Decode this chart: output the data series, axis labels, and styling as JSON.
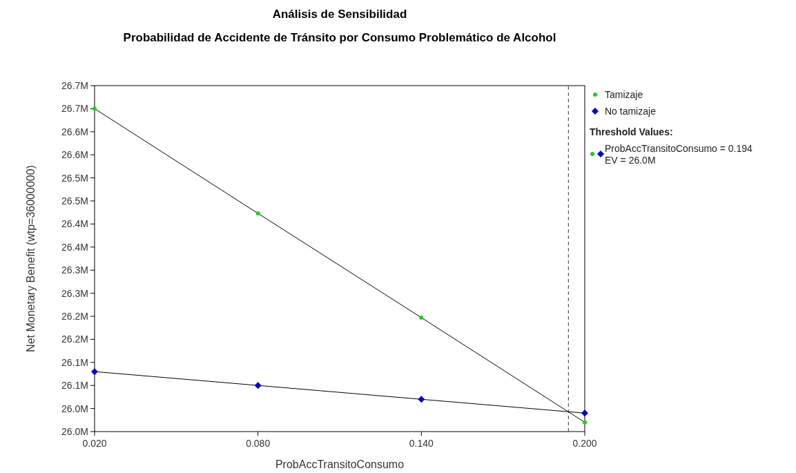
{
  "chart_data": {
    "type": "line",
    "title": "Análisis de Sensibilidad",
    "subtitle": "Probabilidad de Accidente de Tránsito por Consumo Problemático de Alcohol",
    "xlabel": "ProbAccTransitoConsumo",
    "ylabel": "Net Monetary Benefit (wtp=36000000)",
    "legend_title": "Threshold Values:",
    "annotations": [
      "ProbAccTransitoConsumo = 0.194",
      "EV = 26.0M"
    ],
    "x": [
      0.02,
      0.08,
      0.14,
      0.2
    ],
    "series": [
      {
        "name": "Tamizaje",
        "color": "#22cc22",
        "marker": "circle",
        "values": [
          26650000,
          26423000,
          26197000,
          25970000
        ]
      },
      {
        "name": "No tamizaje",
        "color": "#0000cc",
        "marker": "diamond",
        "values": [
          26080000,
          26050000,
          26020000,
          25990000
        ]
      }
    ],
    "xlim": [
      0.02,
      0.2
    ],
    "xticks": [
      {
        "value": 0.02,
        "label": "0.020"
      },
      {
        "value": 0.08,
        "label": "0.080"
      },
      {
        "value": 0.14,
        "label": "0.140"
      },
      {
        "value": 0.2,
        "label": "0.200"
      }
    ],
    "ylim": [
      25950000,
      26700000
    ],
    "yticks": [
      {
        "value": 25950000,
        "label": "26.0M"
      },
      {
        "value": 26000000,
        "label": "26.0M"
      },
      {
        "value": 26050000,
        "label": "26.1M"
      },
      {
        "value": 26100000,
        "label": "26.1M"
      },
      {
        "value": 26150000,
        "label": "26.2M"
      },
      {
        "value": 26200000,
        "label": "26.2M"
      },
      {
        "value": 26250000,
        "label": "26.3M"
      },
      {
        "value": 26300000,
        "label": "26.3M"
      },
      {
        "value": 26350000,
        "label": "26.4M"
      },
      {
        "value": 26400000,
        "label": "26.4M"
      },
      {
        "value": 26450000,
        "label": "26.5M"
      },
      {
        "value": 26500000,
        "label": "26.5M"
      },
      {
        "value": 26550000,
        "label": "26.6M"
      },
      {
        "value": 26600000,
        "label": "26.6M"
      },
      {
        "value": 26650000,
        "label": "26.7M"
      },
      {
        "value": 26700000,
        "label": "26.7M"
      }
    ],
    "ref_lines": [
      {
        "axis": "x",
        "value": 0.194,
        "line_style": "dashed",
        "color": "#333333"
      }
    ],
    "grid": false,
    "legend": "right",
    "line_style": "solid"
  }
}
